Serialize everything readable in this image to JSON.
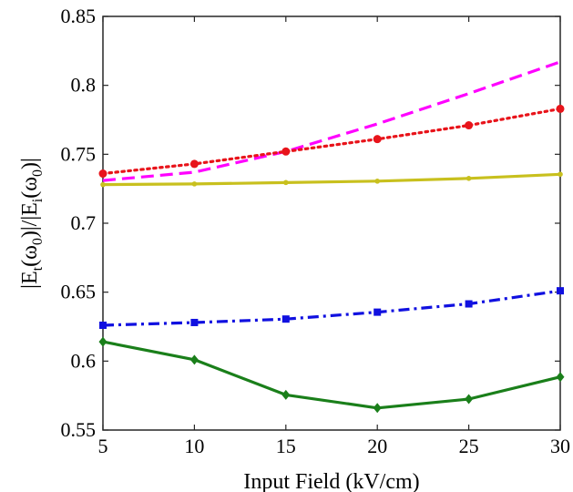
{
  "chart_data": {
    "type": "line",
    "xlabel": "Input Field (kV/cm)",
    "ylabel": "|E_t(ω_0)|/|E_i(ω_0)|",
    "ylabel_parts": {
      "open": "|E",
      "t_sub": "t",
      "mid1": "(ω",
      "zero_sub1": "0",
      "mid2": ")|/|E",
      "i_sub": "i",
      "mid3": "(ω",
      "zero_sub2": "0",
      "close": ")|"
    },
    "xlim": [
      5,
      30
    ],
    "ylim": [
      0.55,
      0.85
    ],
    "x_ticks": [
      "5",
      "10",
      "15",
      "20",
      "25",
      "30"
    ],
    "y_ticks": [
      "0.55",
      "0.6",
      "0.65",
      "0.7",
      "0.75",
      "0.8",
      "0.85"
    ],
    "x": [
      5,
      10,
      15,
      20,
      25,
      30
    ],
    "grid": false,
    "series": [
      {
        "values": [
          0.731,
          0.737,
          0.752,
          0.772,
          0.794,
          0.817
        ],
        "color": "#ff00ff",
        "style": "dashed",
        "marker": "none"
      },
      {
        "values": [
          0.736,
          0.743,
          0.752,
          0.761,
          0.771,
          0.783
        ],
        "color": "#e8141b",
        "style": "dotted",
        "marker": "circle"
      },
      {
        "values": [
          0.728,
          0.7285,
          0.7295,
          0.7305,
          0.7325,
          0.7355
        ],
        "color": "#c8c01e",
        "style": "solid",
        "marker": "dot"
      },
      {
        "values": [
          0.626,
          0.628,
          0.6305,
          0.6355,
          0.6415,
          0.651
        ],
        "color": "#1010e0",
        "style": "dashdot",
        "marker": "square"
      },
      {
        "values": [
          0.614,
          0.601,
          0.5755,
          0.566,
          0.5725,
          0.5885
        ],
        "color": "#1a7f1a",
        "style": "solid",
        "marker": "diamond"
      }
    ]
  }
}
